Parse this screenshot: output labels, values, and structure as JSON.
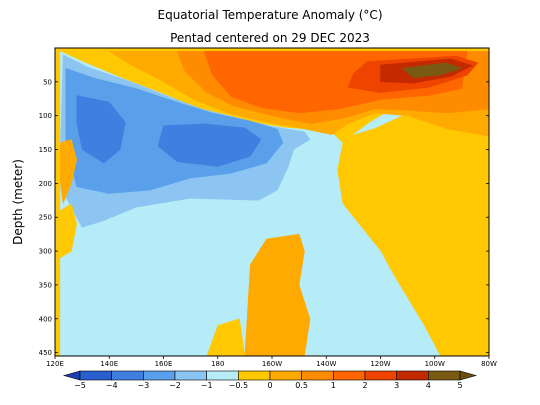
{
  "chart_data": {
    "type": "heatmap",
    "title": "Equatorial Temperature Anomaly (°C)",
    "subtitle": "Pentad centered on 29 DEC 2023",
    "xlabel": "",
    "ylabel": "Depth (meter)",
    "x_range_lon_east": [
      120,
      280
    ],
    "y_range_depth_m": [
      0,
      455
    ],
    "x_ticks": [
      {
        "lon": 120,
        "label": "120E"
      },
      {
        "lon": 140,
        "label": "140E"
      },
      {
        "lon": 160,
        "label": "160E"
      },
      {
        "lon": 180,
        "label": "180"
      },
      {
        "lon": 200,
        "label": "160W"
      },
      {
        "lon": 220,
        "label": "140W"
      },
      {
        "lon": 240,
        "label": "120W"
      },
      {
        "lon": 260,
        "label": "100W"
      },
      {
        "lon": 280,
        "label": "80W"
      }
    ],
    "y_ticks": [
      {
        "depth": 50,
        "label": "50"
      },
      {
        "depth": 100,
        "label": "100"
      },
      {
        "depth": 150,
        "label": "150"
      },
      {
        "depth": 200,
        "label": "200"
      },
      {
        "depth": 250,
        "label": "250"
      },
      {
        "depth": 300,
        "label": "300"
      },
      {
        "depth": 350,
        "label": "350"
      },
      {
        "depth": 400,
        "label": "400"
      },
      {
        "depth": 450,
        "label": "450"
      }
    ],
    "colorbar": {
      "levels": [
        -5,
        -4,
        -3,
        -2,
        -1,
        -0.5,
        0,
        0.5,
        1,
        2,
        3,
        4,
        5
      ],
      "labels": [
        "−5",
        "−4",
        "−3",
        "−2",
        "−1",
        "−0.5",
        "0",
        "0.5",
        "1",
        "2",
        "3",
        "4",
        "5"
      ],
      "colors": [
        "#1f3fb0",
        "#2a5fd0",
        "#3f7fe0",
        "#5a9fea",
        "#8cc5f2",
        "#b5ecf8",
        "#ffc800",
        "#ffaa00",
        "#ff8c00",
        "#ff6600",
        "#ee4400",
        "#c42a00",
        "#7a5a12",
        "#6a4c0c"
      ]
    },
    "regions": [
      {
        "name": "background",
        "level": "0 to 0.5",
        "color": "#ffc800"
      },
      {
        "name": "cold-deep",
        "level": "-0.5 to 0",
        "color": "#b5ecf8",
        "poly": [
          [
            122,
            5
          ],
          [
            130,
            20
          ],
          [
            145,
            45
          ],
          [
            160,
            68
          ],
          [
            172,
            88
          ],
          [
            186,
            102
          ],
          [
            196,
            112
          ],
          [
            205,
            118
          ],
          [
            215,
            121
          ],
          [
            222,
            125
          ],
          [
            226,
            140
          ],
          [
            224,
            180
          ],
          [
            226,
            230
          ],
          [
            234,
            270
          ],
          [
            240,
            300
          ],
          [
            244,
            330
          ],
          [
            250,
            370
          ],
          [
            256,
            410
          ],
          [
            262,
            455
          ],
          [
            122,
            455
          ]
        ]
      },
      {
        "name": "cold-east-lens",
        "level": "-0.5 to 0",
        "color": "#b5ecf8",
        "poly": [
          [
            230,
            128
          ],
          [
            236,
            110
          ],
          [
            242,
            96
          ],
          [
            250,
            86
          ],
          [
            252,
            92
          ],
          [
            245,
            105
          ],
          [
            238,
            118
          ]
        ]
      },
      {
        "name": "cold-thermocline",
        "level": "-1 to -0.5",
        "color": "#8cc5f2",
        "poly": [
          [
            123,
            10
          ],
          [
            132,
            28
          ],
          [
            148,
            50
          ],
          [
            162,
            72
          ],
          [
            174,
            90
          ],
          [
            188,
            104
          ],
          [
            200,
            116
          ],
          [
            212,
            124
          ],
          [
            214,
            135
          ],
          [
            208,
            150
          ],
          [
            206,
            175
          ],
          [
            202,
            210
          ],
          [
            195,
            225
          ],
          [
            170,
            222
          ],
          [
            150,
            235
          ],
          [
            138,
            255
          ],
          [
            130,
            265
          ],
          [
            124,
            220
          ],
          [
            122,
            150
          ]
        ]
      },
      {
        "name": "cold-thermocline-core",
        "level": "-2 to -1",
        "color": "#5a9fea",
        "poly": [
          [
            124,
            30
          ],
          [
            135,
            45
          ],
          [
            150,
            60
          ],
          [
            165,
            80
          ],
          [
            178,
            96
          ],
          [
            192,
            108
          ],
          [
            202,
            120
          ],
          [
            204,
            140
          ],
          [
            198,
            170
          ],
          [
            185,
            185
          ],
          [
            170,
            192
          ],
          [
            155,
            210
          ],
          [
            140,
            215
          ],
          [
            128,
            205
          ],
          [
            124,
            140
          ]
        ]
      },
      {
        "name": "cold-core-west",
        "level": "-3 to -2",
        "color": "#3f7fe0",
        "poly": [
          [
            128,
            70
          ],
          [
            140,
            80
          ],
          [
            146,
            110
          ],
          [
            144,
            150
          ],
          [
            138,
            170
          ],
          [
            130,
            150
          ],
          [
            128,
            110
          ]
        ]
      },
      {
        "name": "cold-core-central",
        "level": "-3 to -2",
        "color": "#3f7fe0",
        "poly": [
          [
            160,
            115
          ],
          [
            175,
            112
          ],
          [
            190,
            118
          ],
          [
            196,
            135
          ],
          [
            192,
            160
          ],
          [
            180,
            175
          ],
          [
            165,
            168
          ],
          [
            158,
            145
          ]
        ]
      },
      {
        "name": "warm-surface",
        "level": "0.5 to 1",
        "color": "#ffaa00",
        "poly": [
          [
            140,
            5
          ],
          [
            280,
            5
          ],
          [
            280,
            130
          ],
          [
            265,
            120
          ],
          [
            250,
            100
          ],
          [
            238,
            96
          ],
          [
            228,
            112
          ],
          [
            222,
            128
          ],
          [
            210,
            118
          ],
          [
            196,
            108
          ],
          [
            184,
            96
          ],
          [
            172,
            78
          ],
          [
            160,
            50
          ],
          [
            148,
            25
          ]
        ]
      },
      {
        "name": "warm-surface-2",
        "level": "1 to 2",
        "color": "#ff8c00",
        "poly": [
          [
            165,
            5
          ],
          [
            280,
            5
          ],
          [
            280,
            90
          ],
          [
            265,
            96
          ],
          [
            250,
            92
          ],
          [
            238,
            90
          ],
          [
            226,
            104
          ],
          [
            214,
            112
          ],
          [
            200,
            100
          ],
          [
            186,
            86
          ],
          [
            176,
            66
          ],
          [
            168,
            35
          ]
        ]
      },
      {
        "name": "warm-surface-3",
        "level": "2 to 3",
        "color": "#ff6600",
        "poly": [
          [
            175,
            5
          ],
          [
            272,
            5
          ],
          [
            270,
            60
          ],
          [
            258,
            70
          ],
          [
            240,
            76
          ],
          [
            225,
            90
          ],
          [
            210,
            96
          ],
          [
            196,
            88
          ],
          [
            185,
            72
          ],
          [
            178,
            40
          ]
        ]
      },
      {
        "name": "warm-east-3",
        "level": "3 to 4",
        "color": "#ee4400",
        "poly": [
          [
            235,
            20
          ],
          [
            268,
            12
          ],
          [
            276,
            22
          ],
          [
            272,
            40
          ],
          [
            258,
            58
          ],
          [
            240,
            66
          ],
          [
            228,
            58
          ],
          [
            230,
            38
          ]
        ]
      },
      {
        "name": "warm-east-4",
        "level": "4 to 5",
        "color": "#c42a00",
        "poly": [
          [
            240,
            25
          ],
          [
            266,
            16
          ],
          [
            274,
            26
          ],
          [
            266,
            42
          ],
          [
            252,
            52
          ],
          [
            240,
            50
          ]
        ]
      },
      {
        "name": "warm-east-5",
        "level": "5+",
        "color": "#7a5a12",
        "poly": [
          [
            248,
            30
          ],
          [
            264,
            22
          ],
          [
            270,
            30
          ],
          [
            262,
            40
          ],
          [
            252,
            44
          ]
        ]
      },
      {
        "name": "warm-west-patch",
        "level": "0.5 to 1",
        "color": "#ffaa00",
        "poly": [
          [
            122,
            140
          ],
          [
            126,
            135
          ],
          [
            128,
            165
          ],
          [
            126,
            200
          ],
          [
            123,
            230
          ],
          [
            122,
            200
          ]
        ]
      },
      {
        "name": "warm-central-deep",
        "level": "0.5 to 1",
        "color": "#ffaa00",
        "poly": [
          [
            190,
            455
          ],
          [
            192,
            320
          ],
          [
            198,
            282
          ],
          [
            210,
            275
          ],
          [
            212,
            300
          ],
          [
            210,
            350
          ],
          [
            214,
            400
          ],
          [
            212,
            455
          ]
        ]
      },
      {
        "name": "warm-deep-blob",
        "level": "0 to 0.5",
        "color": "#ffc800",
        "poly": [
          [
            176,
            455
          ],
          [
            180,
            410
          ],
          [
            188,
            400
          ],
          [
            190,
            455
          ]
        ]
      },
      {
        "name": "warm-lower-west",
        "level": "0 to 0.5",
        "color": "#ffc800",
        "poly": [
          [
            122,
            240
          ],
          [
            126,
            230
          ],
          [
            128,
            260
          ],
          [
            126,
            300
          ],
          [
            122,
            310
          ]
        ]
      }
    ]
  }
}
